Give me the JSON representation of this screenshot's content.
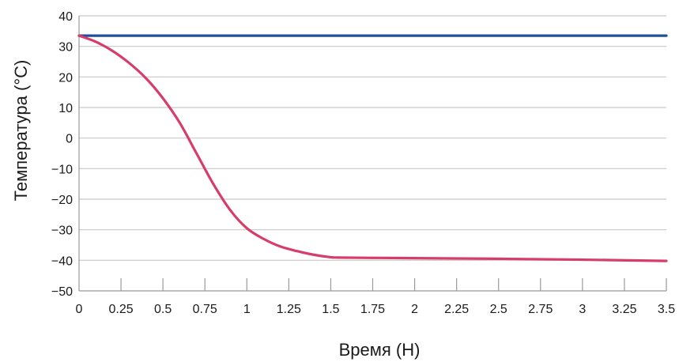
{
  "chart_data": {
    "type": "line",
    "xlabel": "Время (Н)",
    "ylabel": "Температура (°C)",
    "xlim": [
      0,
      3.5
    ],
    "ylim": [
      -50,
      40
    ],
    "x_ticks": [
      "0",
      "0.25",
      "0.5",
      "0.75",
      "1",
      "1.25",
      "1.5",
      "1.75",
      "2",
      "2.25",
      "2.5",
      "2.75",
      "3",
      "3.25",
      "3.5"
    ],
    "y_ticks": [
      "40",
      "30",
      "20",
      "10",
      "0",
      "−10",
      "−20",
      "−30",
      "−40",
      "−50"
    ],
    "grid": "horizontal",
    "series": [
      {
        "color": "#1f4e9c",
        "x": [
          0,
          3.5
        ],
        "y": [
          33.5,
          33.5
        ]
      },
      {
        "color": "#d63d6b",
        "x": [
          0,
          0.1,
          0.2,
          0.3,
          0.4,
          0.5,
          0.6,
          0.7,
          0.8,
          0.9,
          1.0,
          1.1,
          1.2,
          1.3,
          1.4,
          1.5,
          1.55,
          1.75,
          2.0,
          2.5,
          3.0,
          3.5
        ],
        "y": [
          33.5,
          31.5,
          28.5,
          24.5,
          19.5,
          13,
          5,
          -5,
          -15,
          -23.5,
          -29.5,
          -33,
          -35.5,
          -37,
          -38.2,
          -39,
          -39.1,
          -39.2,
          -39.3,
          -39.5,
          -39.8,
          -40.2
        ]
      }
    ]
  }
}
